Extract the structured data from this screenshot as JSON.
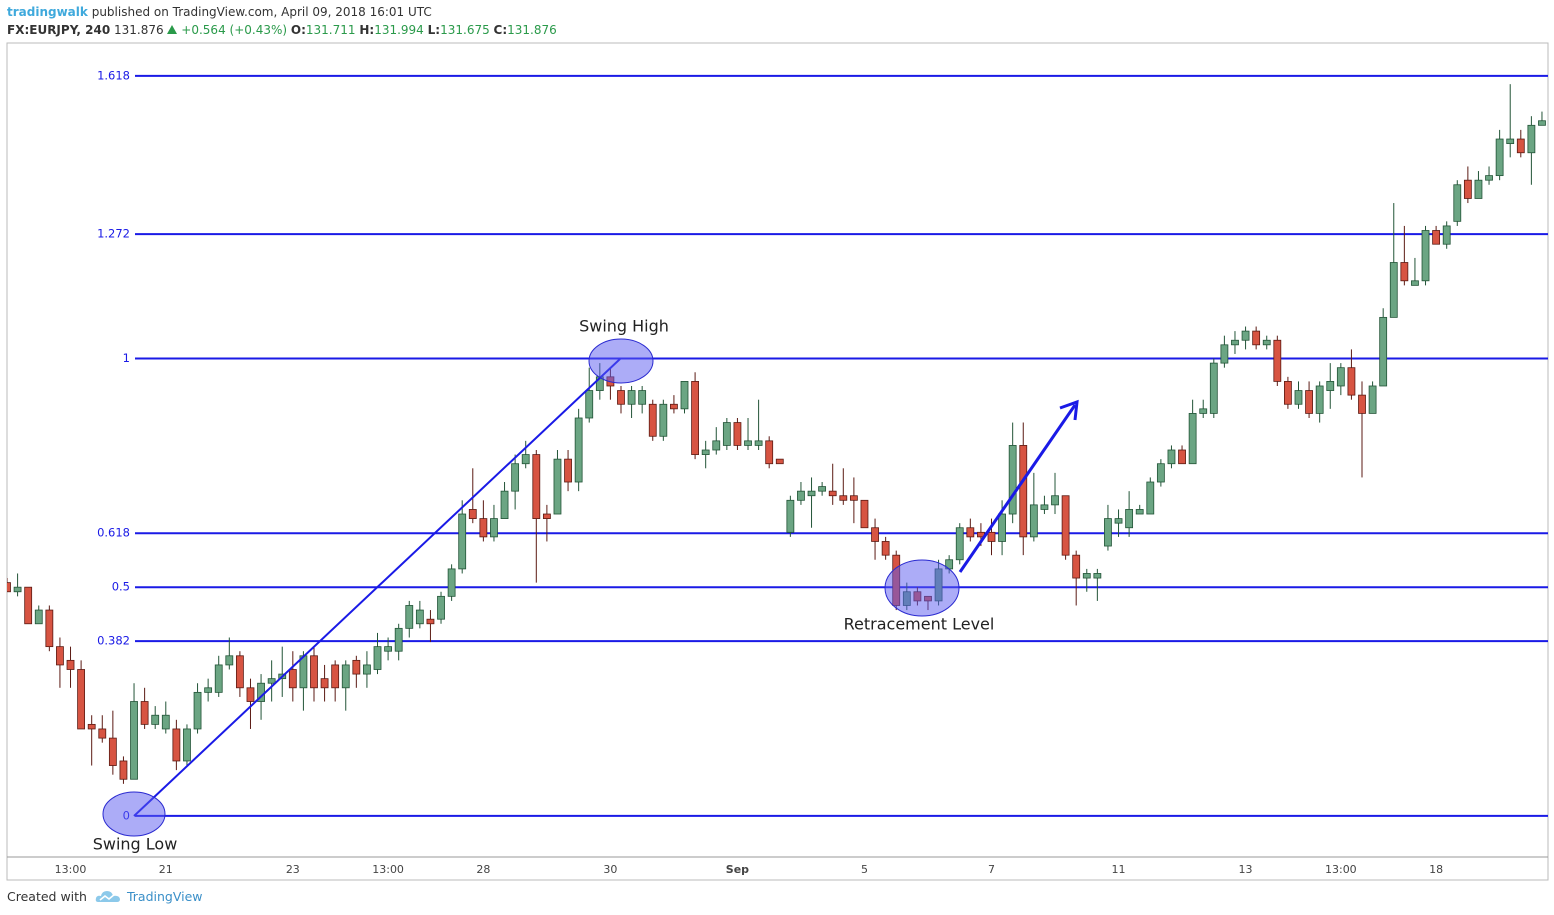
{
  "header": {
    "author": "tradingwalk",
    "published": "published on TradingView.com, April 09, 2018 16:01 UTC",
    "symbol": "FX:EURJPY, 240",
    "last": "131.876",
    "change": "+0.564 (+0.43%)",
    "open_label": "O:",
    "open": "131.711",
    "high_label": "H:",
    "high": "131.994",
    "low_label": "L:",
    "low": "131.675",
    "close_label": "C:",
    "close": "131.876"
  },
  "chart_data": {
    "type": "candlestick",
    "up_color": "#6ba583",
    "down_color": "#d75442",
    "up_border": "#225437",
    "down_border": "#5b1a13",
    "fib_color": "#1a1ae6",
    "ylim": [
      -0.09,
      1.69
    ],
    "yticks": [
      0,
      0.382,
      0.5,
      0.618,
      1,
      1.272,
      1.618
    ],
    "annotations": [
      "Swing High",
      "Swing Low",
      "Retracement Level"
    ],
    "categories": [
      null,
      null,
      null,
      null,
      null,
      null,
      "13:00",
      null,
      null,
      null,
      null,
      null,
      null,
      null,
      null,
      "21",
      null,
      null,
      null,
      null,
      null,
      null,
      null,
      null,
      null,
      null,
      null,
      "23",
      null,
      null,
      null,
      null,
      null,
      null,
      null,
      null,
      "13:00",
      null,
      null,
      null,
      null,
      null,
      null,
      null,
      null,
      "28",
      null,
      null,
      null,
      null,
      null,
      null,
      null,
      null,
      null,
      null,
      null,
      "30",
      null,
      null,
      null,
      null,
      null,
      null,
      null,
      null,
      null,
      null,
      null,
      "Sep",
      null,
      null,
      null,
      null,
      null,
      null,
      null,
      null,
      null,
      null,
      null,
      "5",
      null,
      null,
      null,
      null,
      null,
      null,
      null,
      null,
      null,
      null,
      null,
      "7",
      null,
      null,
      null,
      null,
      null,
      null,
      null,
      null,
      null,
      null,
      null,
      "11",
      null,
      null,
      null,
      null,
      null,
      null,
      null,
      null,
      null,
      null,
      null,
      "13",
      null,
      null,
      null,
      null,
      null,
      null,
      null,
      null,
      "13:00",
      null,
      null,
      null,
      null,
      null,
      null,
      null,
      null,
      "18",
      null,
      null,
      null,
      null,
      null,
      null,
      null,
      null,
      null,
      null
    ],
    "open": [
      0.51,
      0.49,
      0.5,
      0.42,
      0.45,
      0.37,
      0.34,
      0.32,
      0.2,
      0.19,
      0.17,
      0.12,
      0.08,
      0.25,
      0.2,
      0.19,
      0.19,
      0.12,
      0.19,
      0.27,
      0.27,
      0.33,
      0.35,
      0.28,
      0.25,
      0.29,
      0.3,
      0.32,
      0.28,
      0.35,
      0.3,
      0.33,
      0.28,
      0.34,
      0.31,
      0.32,
      0.36,
      0.36,
      0.41,
      0.42,
      0.43,
      0.43,
      0.48,
      0.54,
      0.67,
      0.65,
      0.61,
      0.65,
      0.71,
      0.77,
      0.79,
      0.66,
      0.66,
      0.78,
      0.73,
      0.87,
      0.93,
      0.96,
      0.93,
      0.9,
      0.9,
      0.9,
      0.83,
      0.9,
      0.89,
      0.95,
      0.79,
      0.8,
      0.81,
      0.86,
      0.81,
      0.81,
      0.82,
      0.78,
      0.62,
      0.69,
      0.7,
      0.71,
      0.71,
      0.7,
      0.7,
      0.69,
      0.63,
      0.6,
      0.57,
      0.46,
      0.49,
      0.48,
      0.47,
      0.54,
      0.56,
      0.63,
      0.62,
      0.62,
      0.6,
      0.66,
      0.81,
      0.61,
      0.67,
      0.68,
      0.7,
      0.57,
      0.52,
      0.52,
      0.59,
      0.64,
      0.63,
      0.66,
      0.66,
      0.73,
      0.77,
      0.8,
      0.77,
      0.88,
      0.88,
      0.99,
      1.03,
      1.04,
      1.06,
      1.03,
      1.04,
      0.95,
      0.9,
      0.93,
      0.88,
      0.93,
      0.94,
      0.98,
      0.92,
      0.88,
      0.94,
      1.09,
      1.21,
      1.16,
      1.17,
      1.28,
      1.25,
      1.3,
      1.39,
      1.35,
      1.39,
      1.4,
      1.47,
      1.48,
      1.45,
      1.51
    ],
    "high": [
      0.52,
      0.53,
      0.5,
      0.46,
      0.46,
      0.39,
      0.37,
      0.34,
      0.22,
      0.22,
      0.23,
      0.13,
      0.29,
      0.28,
      0.24,
      0.25,
      0.21,
      0.2,
      0.29,
      0.3,
      0.35,
      0.39,
      0.36,
      0.3,
      0.31,
      0.34,
      0.37,
      0.36,
      0.36,
      0.37,
      0.33,
      0.34,
      0.34,
      0.35,
      0.36,
      0.4,
      0.39,
      0.42,
      0.47,
      0.47,
      0.45,
      0.49,
      0.55,
      0.69,
      0.76,
      0.69,
      0.68,
      0.73,
      0.79,
      0.82,
      0.8,
      0.68,
      0.8,
      0.8,
      0.89,
      0.98,
      0.99,
      0.98,
      0.94,
      0.94,
      0.94,
      0.91,
      0.91,
      0.92,
      0.95,
      0.97,
      0.82,
      0.85,
      0.87,
      0.87,
      0.87,
      0.91,
      0.83,
      0.78,
      0.7,
      0.73,
      0.74,
      0.73,
      0.77,
      0.76,
      0.74,
      0.69,
      0.65,
      0.61,
      0.58,
      0.51,
      0.5,
      0.48,
      0.56,
      0.57,
      0.64,
      0.65,
      0.64,
      0.65,
      0.69,
      0.86,
      0.86,
      0.75,
      0.7,
      0.75,
      0.7,
      0.58,
      0.54,
      0.54,
      0.68,
      0.67,
      0.71,
      0.68,
      0.74,
      0.78,
      0.81,
      0.81,
      0.91,
      0.91,
      1.0,
      1.05,
      1.06,
      1.07,
      1.07,
      1.05,
      1.05,
      0.96,
      0.95,
      0.95,
      0.95,
      0.99,
      0.99,
      1.02,
      0.95,
      0.95,
      1.11,
      1.34,
      1.29,
      1.22,
      1.29,
      1.29,
      1.3,
      1.39,
      1.42,
      1.41,
      1.42,
      1.5,
      1.6,
      1.5,
      1.53,
      1.54
    ],
    "low": [
      0.49,
      0.48,
      0.42,
      0.42,
      0.36,
      0.28,
      0.28,
      0.19,
      0.11,
      0.16,
      0.09,
      0.07,
      0.08,
      0.19,
      0.19,
      0.18,
      0.1,
      0.11,
      0.18,
      0.25,
      0.26,
      0.32,
      0.26,
      0.19,
      0.21,
      0.25,
      0.26,
      0.25,
      0.23,
      0.25,
      0.25,
      0.25,
      0.23,
      0.28,
      0.28,
      0.31,
      0.34,
      0.34,
      0.39,
      0.41,
      0.38,
      0.42,
      0.47,
      0.53,
      0.64,
      0.6,
      0.6,
      0.65,
      0.67,
      0.76,
      0.51,
      0.6,
      0.66,
      0.71,
      0.71,
      0.86,
      0.91,
      0.91,
      0.88,
      0.87,
      0.88,
      0.82,
      0.82,
      0.88,
      0.88,
      0.78,
      0.76,
      0.79,
      0.8,
      0.8,
      0.8,
      0.8,
      0.76,
      0.77,
      0.61,
      0.68,
      0.63,
      0.7,
      0.68,
      0.68,
      0.64,
      0.63,
      0.56,
      0.56,
      0.45,
      0.45,
      0.46,
      0.45,
      0.46,
      0.53,
      0.55,
      0.6,
      0.59,
      0.57,
      0.57,
      0.64,
      0.57,
      0.6,
      0.66,
      0.66,
      0.56,
      0.46,
      0.49,
      0.47,
      0.58,
      0.61,
      0.61,
      0.66,
      0.66,
      0.72,
      0.76,
      0.77,
      0.77,
      0.87,
      0.87,
      0.98,
      1.01,
      1.02,
      1.02,
      1.02,
      0.94,
      0.89,
      0.89,
      0.87,
      0.86,
      0.89,
      0.92,
      0.91,
      0.74,
      0.88,
      0.94,
      1.09,
      1.16,
      1.16,
      1.16,
      1.25,
      1.24,
      1.29,
      1.34,
      1.35,
      1.38,
      1.39,
      1.44,
      1.44,
      1.38,
      1.51
    ],
    "close": [
      0.49,
      0.5,
      0.42,
      0.45,
      0.37,
      0.33,
      0.32,
      0.19,
      0.19,
      0.17,
      0.11,
      0.08,
      0.25,
      0.2,
      0.22,
      0.22,
      0.12,
      0.19,
      0.27,
      0.28,
      0.33,
      0.35,
      0.28,
      0.25,
      0.29,
      0.3,
      0.31,
      0.28,
      0.35,
      0.28,
      0.28,
      0.28,
      0.33,
      0.31,
      0.33,
      0.37,
      0.37,
      0.41,
      0.46,
      0.45,
      0.42,
      0.48,
      0.54,
      0.66,
      0.65,
      0.61,
      0.65,
      0.71,
      0.77,
      0.79,
      0.65,
      0.65,
      0.78,
      0.73,
      0.87,
      0.93,
      0.96,
      0.94,
      0.9,
      0.93,
      0.93,
      0.83,
      0.9,
      0.89,
      0.95,
      0.79,
      0.8,
      0.82,
      0.86,
      0.81,
      0.82,
      0.82,
      0.77,
      0.77,
      0.69,
      0.71,
      0.71,
      0.72,
      0.7,
      0.69,
      0.69,
      0.63,
      0.6,
      0.57,
      0.46,
      0.49,
      0.47,
      0.47,
      0.54,
      0.56,
      0.63,
      0.61,
      0.61,
      0.6,
      0.66,
      0.81,
      0.61,
      0.68,
      0.68,
      0.7,
      0.57,
      0.52,
      0.53,
      0.53,
      0.65,
      0.65,
      0.67,
      0.67,
      0.73,
      0.77,
      0.8,
      0.77,
      0.88,
      0.89,
      0.99,
      1.03,
      1.04,
      1.06,
      1.03,
      1.04,
      0.95,
      0.9,
      0.93,
      0.88,
      0.94,
      0.95,
      0.98,
      0.92,
      0.88,
      0.94,
      1.09,
      1.21,
      1.17,
      1.17,
      1.28,
      1.25,
      1.29,
      1.38,
      1.35,
      1.39,
      1.4,
      1.48,
      1.48,
      1.45,
      1.51,
      1.52
    ]
  },
  "footer": {
    "created_with": "Created with",
    "brand": "TradingView"
  }
}
